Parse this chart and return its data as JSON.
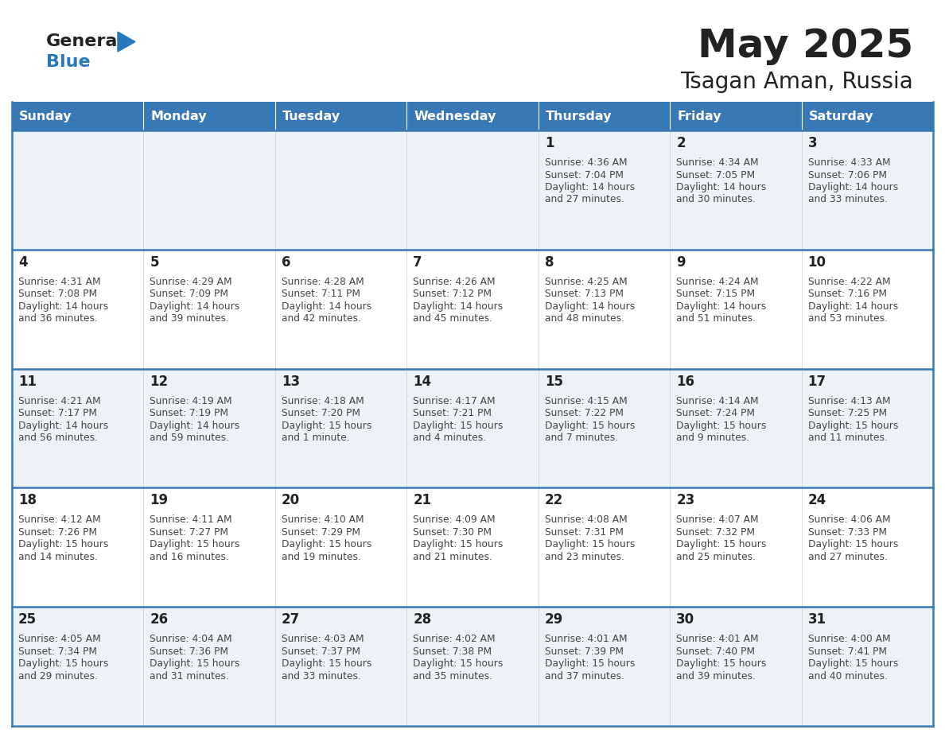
{
  "title": "May 2025",
  "subtitle": "Tsagan Aman, Russia",
  "header_color": "#3878b4",
  "header_text_color": "#ffffff",
  "day_names": [
    "Sunday",
    "Monday",
    "Tuesday",
    "Wednesday",
    "Thursday",
    "Friday",
    "Saturday"
  ],
  "row_colors": [
    "#edf2f8",
    "#ffffff"
  ],
  "cell_border_color": "#3878b4",
  "number_color": "#222222",
  "text_color": "#444444",
  "logo_general_color": "#222222",
  "logo_blue_color": "#2878c0",
  "calendar": [
    [
      null,
      null,
      null,
      null,
      {
        "day": 1,
        "sunrise": "4:36 AM",
        "sunset": "7:04 PM",
        "daylight_line1": "Daylight: 14 hours",
        "daylight_line2": "and 27 minutes."
      },
      {
        "day": 2,
        "sunrise": "4:34 AM",
        "sunset": "7:05 PM",
        "daylight_line1": "Daylight: 14 hours",
        "daylight_line2": "and 30 minutes."
      },
      {
        "day": 3,
        "sunrise": "4:33 AM",
        "sunset": "7:06 PM",
        "daylight_line1": "Daylight: 14 hours",
        "daylight_line2": "and 33 minutes."
      }
    ],
    [
      {
        "day": 4,
        "sunrise": "4:31 AM",
        "sunset": "7:08 PM",
        "daylight_line1": "Daylight: 14 hours",
        "daylight_line2": "and 36 minutes."
      },
      {
        "day": 5,
        "sunrise": "4:29 AM",
        "sunset": "7:09 PM",
        "daylight_line1": "Daylight: 14 hours",
        "daylight_line2": "and 39 minutes."
      },
      {
        "day": 6,
        "sunrise": "4:28 AM",
        "sunset": "7:11 PM",
        "daylight_line1": "Daylight: 14 hours",
        "daylight_line2": "and 42 minutes."
      },
      {
        "day": 7,
        "sunrise": "4:26 AM",
        "sunset": "7:12 PM",
        "daylight_line1": "Daylight: 14 hours",
        "daylight_line2": "and 45 minutes."
      },
      {
        "day": 8,
        "sunrise": "4:25 AM",
        "sunset": "7:13 PM",
        "daylight_line1": "Daylight: 14 hours",
        "daylight_line2": "and 48 minutes."
      },
      {
        "day": 9,
        "sunrise": "4:24 AM",
        "sunset": "7:15 PM",
        "daylight_line1": "Daylight: 14 hours",
        "daylight_line2": "and 51 minutes."
      },
      {
        "day": 10,
        "sunrise": "4:22 AM",
        "sunset": "7:16 PM",
        "daylight_line1": "Daylight: 14 hours",
        "daylight_line2": "and 53 minutes."
      }
    ],
    [
      {
        "day": 11,
        "sunrise": "4:21 AM",
        "sunset": "7:17 PM",
        "daylight_line1": "Daylight: 14 hours",
        "daylight_line2": "and 56 minutes."
      },
      {
        "day": 12,
        "sunrise": "4:19 AM",
        "sunset": "7:19 PM",
        "daylight_line1": "Daylight: 14 hours",
        "daylight_line2": "and 59 minutes."
      },
      {
        "day": 13,
        "sunrise": "4:18 AM",
        "sunset": "7:20 PM",
        "daylight_line1": "Daylight: 15 hours",
        "daylight_line2": "and 1 minute."
      },
      {
        "day": 14,
        "sunrise": "4:17 AM",
        "sunset": "7:21 PM",
        "daylight_line1": "Daylight: 15 hours",
        "daylight_line2": "and 4 minutes."
      },
      {
        "day": 15,
        "sunrise": "4:15 AM",
        "sunset": "7:22 PM",
        "daylight_line1": "Daylight: 15 hours",
        "daylight_line2": "and 7 minutes."
      },
      {
        "day": 16,
        "sunrise": "4:14 AM",
        "sunset": "7:24 PM",
        "daylight_line1": "Daylight: 15 hours",
        "daylight_line2": "and 9 minutes."
      },
      {
        "day": 17,
        "sunrise": "4:13 AM",
        "sunset": "7:25 PM",
        "daylight_line1": "Daylight: 15 hours",
        "daylight_line2": "and 11 minutes."
      }
    ],
    [
      {
        "day": 18,
        "sunrise": "4:12 AM",
        "sunset": "7:26 PM",
        "daylight_line1": "Daylight: 15 hours",
        "daylight_line2": "and 14 minutes."
      },
      {
        "day": 19,
        "sunrise": "4:11 AM",
        "sunset": "7:27 PM",
        "daylight_line1": "Daylight: 15 hours",
        "daylight_line2": "and 16 minutes."
      },
      {
        "day": 20,
        "sunrise": "4:10 AM",
        "sunset": "7:29 PM",
        "daylight_line1": "Daylight: 15 hours",
        "daylight_line2": "and 19 minutes."
      },
      {
        "day": 21,
        "sunrise": "4:09 AM",
        "sunset": "7:30 PM",
        "daylight_line1": "Daylight: 15 hours",
        "daylight_line2": "and 21 minutes."
      },
      {
        "day": 22,
        "sunrise": "4:08 AM",
        "sunset": "7:31 PM",
        "daylight_line1": "Daylight: 15 hours",
        "daylight_line2": "and 23 minutes."
      },
      {
        "day": 23,
        "sunrise": "4:07 AM",
        "sunset": "7:32 PM",
        "daylight_line1": "Daylight: 15 hours",
        "daylight_line2": "and 25 minutes."
      },
      {
        "day": 24,
        "sunrise": "4:06 AM",
        "sunset": "7:33 PM",
        "daylight_line1": "Daylight: 15 hours",
        "daylight_line2": "and 27 minutes."
      }
    ],
    [
      {
        "day": 25,
        "sunrise": "4:05 AM",
        "sunset": "7:34 PM",
        "daylight_line1": "Daylight: 15 hours",
        "daylight_line2": "and 29 minutes."
      },
      {
        "day": 26,
        "sunrise": "4:04 AM",
        "sunset": "7:36 PM",
        "daylight_line1": "Daylight: 15 hours",
        "daylight_line2": "and 31 minutes."
      },
      {
        "day": 27,
        "sunrise": "4:03 AM",
        "sunset": "7:37 PM",
        "daylight_line1": "Daylight: 15 hours",
        "daylight_line2": "and 33 minutes."
      },
      {
        "day": 28,
        "sunrise": "4:02 AM",
        "sunset": "7:38 PM",
        "daylight_line1": "Daylight: 15 hours",
        "daylight_line2": "and 35 minutes."
      },
      {
        "day": 29,
        "sunrise": "4:01 AM",
        "sunset": "7:39 PM",
        "daylight_line1": "Daylight: 15 hours",
        "daylight_line2": "and 37 minutes."
      },
      {
        "day": 30,
        "sunrise": "4:01 AM",
        "sunset": "7:40 PM",
        "daylight_line1": "Daylight: 15 hours",
        "daylight_line2": "and 39 minutes."
      },
      {
        "day": 31,
        "sunrise": "4:00 AM",
        "sunset": "7:41 PM",
        "daylight_line1": "Daylight: 15 hours",
        "daylight_line2": "and 40 minutes."
      }
    ]
  ]
}
